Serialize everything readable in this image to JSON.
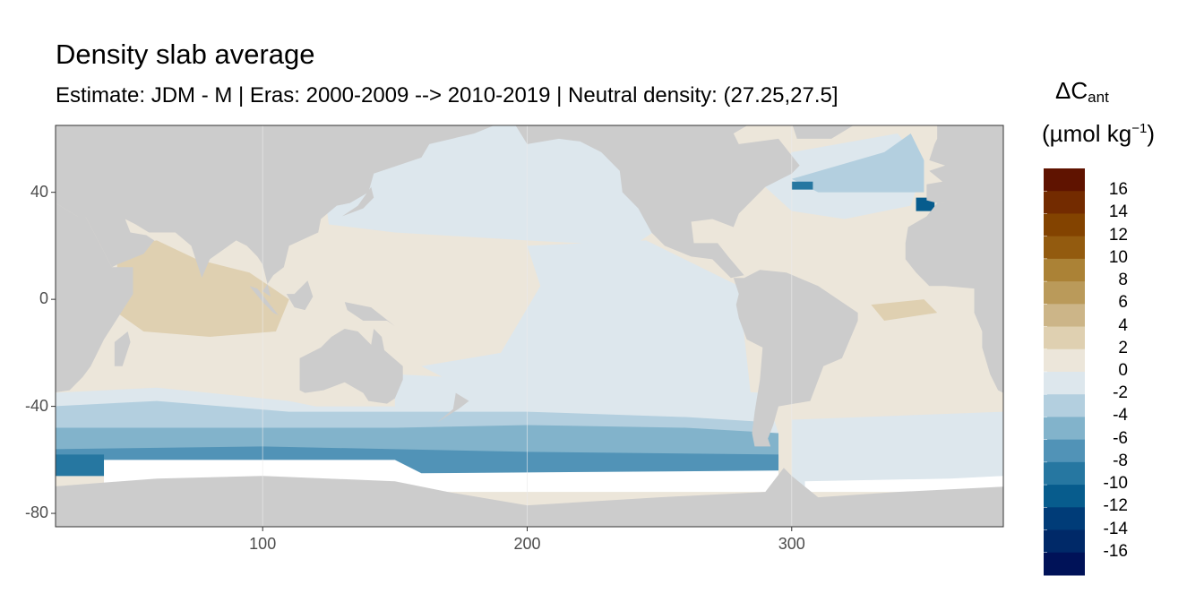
{
  "title": "Density slab average",
  "subtitle": "Estimate: JDM - M | Eras: 2000-2009 --> 2010-2019 | Neutral density: (27.25,27.5]",
  "legend": {
    "title_main": "ΔC",
    "title_sub": "ant",
    "unit_open": "(µmol kg",
    "unit_sup": "−1",
    "unit_close": ")",
    "labels": [
      "16",
      "14",
      "12",
      "10",
      "8",
      "6",
      "4",
      "2",
      "0",
      "-2",
      "-4",
      "-6",
      "-8",
      "-10",
      "-12",
      "-14",
      "-16"
    ],
    "colors": [
      "#5f1300",
      "#732b00",
      "#834300",
      "#935b0f",
      "#ab8236",
      "#ba9a5a",
      "#ccb588",
      "#dfd0b1",
      "#ece6da",
      "#dde7ed",
      "#b3cfdf",
      "#82b3cb",
      "#5193b7",
      "#2677a1",
      "#075c8d",
      "#003c78",
      "#002968",
      "#001258"
    ]
  },
  "chart_data": {
    "type": "heatmap",
    "title": "Density slab average",
    "subtitle": "Estimate: JDM - M | Eras: 2000-2009 --> 2010-2019 | Neutral density: (27.25,27.5]",
    "xlabel": "",
    "ylabel": "",
    "xlim": [
      21.7,
      380
    ],
    "ylim": [
      -85,
      65
    ],
    "x_ticks": [
      "100",
      "200",
      "300"
    ],
    "y_ticks": [
      "40",
      "0",
      "-40",
      "-80"
    ],
    "grid": true,
    "legend_placement": "right",
    "colorbar_range": [
      -18,
      18
    ],
    "colorbar_step": 2,
    "land_color": "#cccccc"
  }
}
